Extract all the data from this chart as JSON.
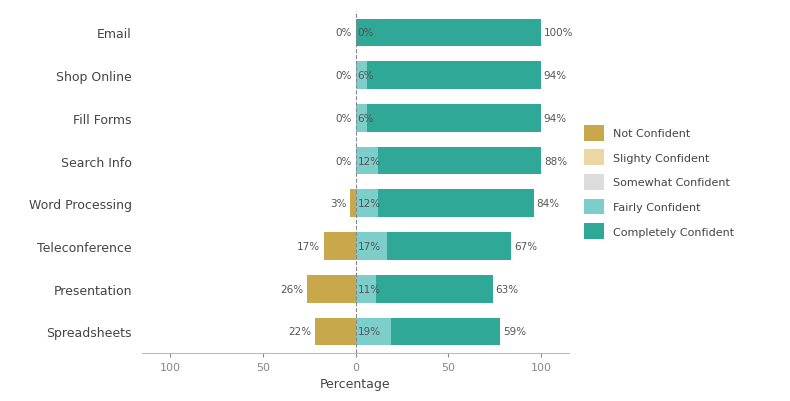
{
  "categories": [
    "Email",
    "Shop Online",
    "Fill Forms",
    "Search Info",
    "Word Processing",
    "Teleconference",
    "Presentation",
    "Spreadsheets"
  ],
  "not_confident": [
    0,
    0,
    0,
    0,
    3,
    17,
    26,
    22
  ],
  "slightly_confident": [
    0,
    0,
    0,
    0,
    0,
    0,
    0,
    0
  ],
  "somewhat_confident": [
    0,
    0,
    0,
    0,
    0,
    0,
    0,
    0
  ],
  "fairly_confident": [
    0,
    6,
    6,
    12,
    12,
    17,
    11,
    19
  ],
  "completely_confident": [
    100,
    94,
    94,
    88,
    84,
    67,
    63,
    59
  ],
  "left_labels": [
    "0%",
    "0%",
    "0%",
    "0%",
    "3%",
    "17%",
    "26%",
    "22%"
  ],
  "mid_labels": [
    "0%",
    "6%",
    "6%",
    "12%",
    "12%",
    "17%",
    "11%",
    "19%"
  ],
  "right_labels": [
    "100%",
    "94%",
    "94%",
    "88%",
    "84%",
    "67%",
    "63%",
    "59%"
  ],
  "colors": {
    "not_confident": "#C8A84B",
    "slightly_confident": "#EAD7A2",
    "somewhat_confident": "#DCDCDC",
    "fairly_confident": "#7DCECA",
    "completely_confident": "#2FA898"
  },
  "legend_labels": [
    "Not Confident",
    "Slighty Confident",
    "Somewhat Confident",
    "Fairly Confident",
    "Completely Confident"
  ],
  "xlabel": "Percentage",
  "xlim": [
    -115,
    115
  ],
  "xticks": [
    -100,
    -50,
    0,
    50,
    100
  ],
  "xticklabels": [
    "100",
    "50",
    "0",
    "50",
    "100"
  ],
  "background_color": "#FFFFFF",
  "bar_height": 0.65,
  "figsize": [
    7.9,
    4.02
  ],
  "dpi": 100
}
